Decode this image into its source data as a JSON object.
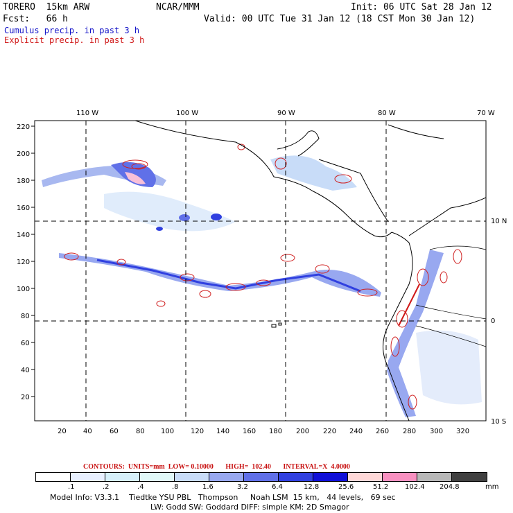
{
  "header": {
    "model": "TORERO  15km ARW",
    "org": "NCAR/MMM",
    "init": "Init: 06 UTC Sat 28 Jan 12",
    "fcst": "Fcst:   66 h",
    "valid": "Valid: 00 UTC Tue 31 Jan 12 (18 CST Mon 30 Jan 12)",
    "cumulus": "Cumulus precip. in past 3 h",
    "explicit": "Explicit precip. in past 3 h"
  },
  "axes": {
    "lon_labels": [
      "110 W",
      "100 W",
      "90 W",
      "80 W",
      "70 W"
    ],
    "lat_labels_right": [
      "10 N",
      "0",
      "10 S"
    ],
    "y_ticks": [
      "220",
      "200",
      "180",
      "160",
      "140",
      "120",
      "100",
      "80",
      "60",
      "40",
      "20"
    ],
    "x_ticks": [
      "20",
      "40",
      "60",
      "80",
      "100",
      "120",
      "140",
      "160",
      "180",
      "200",
      "220",
      "240",
      "260",
      "280",
      "300",
      "320"
    ]
  },
  "contours_line": "CONTOURS:  UNITS=mm  LOW= 0.10000       HIGH=  102.40       INTERVAL=X  4.0000",
  "legend": {
    "colors": [
      "#ffffff",
      "#e8f0ff",
      "#d6f0fa",
      "#e0f8f8",
      "#c8dcf8",
      "#98a8f0",
      "#6070e8",
      "#3040e0",
      "#1010d8",
      "#ffd8d8",
      "#f890c0",
      "#b8b8b8",
      "#404040",
      "#d8a8f8"
    ],
    "labels": [
      ".1",
      ".2",
      ".4",
      ".8",
      "1.6",
      "3.2",
      "6.4",
      "12.8",
      "25.6",
      "51.2",
      "102.4",
      "204.8"
    ],
    "unit": "mm"
  },
  "footer": {
    "line1": "Model Info: V3.3.1    Tiedtke YSU PBL   Thompson     Noah LSM  15 km,   44 levels,   69 sec",
    "line2": "LW: Godd SW: Goddard DIFF: simple KM: 2D Smagor"
  }
}
